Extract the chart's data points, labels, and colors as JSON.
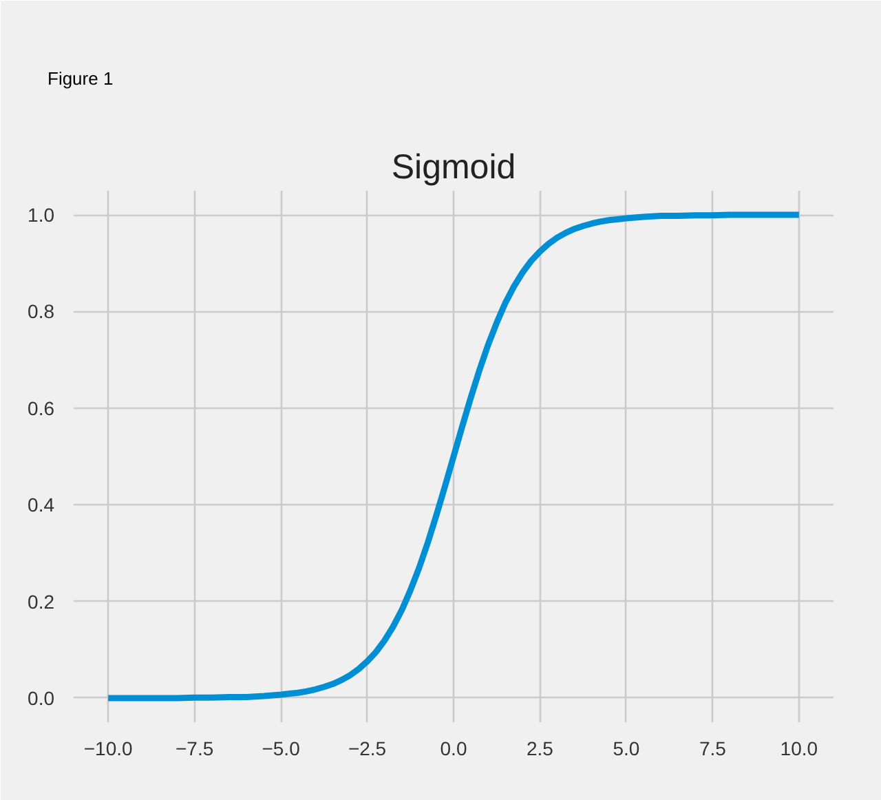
{
  "chart_data": {
    "type": "line",
    "title": "Sigmoid",
    "annotations": [
      "Figure 1"
    ],
    "x": [
      -10,
      -9.5,
      -9,
      -8.5,
      -8,
      -7.5,
      -7,
      -6.5,
      -6,
      -5.5,
      -5,
      -4.75,
      -4.5,
      -4.25,
      -4,
      -3.75,
      -3.5,
      -3.25,
      -3,
      -2.75,
      -2.5,
      -2.25,
      -2,
      -1.75,
      -1.5,
      -1.25,
      -1,
      -0.75,
      -0.5,
      -0.25,
      0,
      0.25,
      0.5,
      0.75,
      1,
      1.25,
      1.5,
      1.75,
      2,
      2.25,
      2.5,
      2.75,
      3,
      3.25,
      3.5,
      3.75,
      4,
      4.25,
      4.5,
      4.75,
      5,
      5.5,
      6,
      6.5,
      7,
      7.5,
      8,
      8.5,
      9,
      9.5,
      10
    ],
    "series": [
      {
        "color": "#008fd5",
        "values": [
          0.0,
          0.0,
          0.0,
          0.0,
          0.0,
          0.001,
          0.001,
          0.002,
          0.002,
          0.004,
          0.007,
          0.009,
          0.011,
          0.014,
          0.018,
          0.023,
          0.029,
          0.037,
          0.047,
          0.06,
          0.076,
          0.095,
          0.119,
          0.148,
          0.182,
          0.223,
          0.269,
          0.321,
          0.378,
          0.438,
          0.5,
          0.562,
          0.622,
          0.679,
          0.731,
          0.777,
          0.818,
          0.852,
          0.881,
          0.905,
          0.924,
          0.94,
          0.953,
          0.963,
          0.971,
          0.977,
          0.982,
          0.986,
          0.989,
          0.991,
          0.993,
          0.996,
          0.998,
          0.998,
          0.999,
          0.999,
          1.0,
          1.0,
          1.0,
          1.0,
          1.0
        ]
      }
    ],
    "xlim": [
      -11,
      11
    ],
    "ylim": [
      -0.05,
      1.05
    ],
    "xticks": [
      {
        "value": -10,
        "label": "−10.0"
      },
      {
        "value": -7.5,
        "label": "−7.5"
      },
      {
        "value": -5,
        "label": "−5.0"
      },
      {
        "value": -2.5,
        "label": "−2.5"
      },
      {
        "value": 0,
        "label": "0.0"
      },
      2.5,
      {
        "value": 5,
        "label": "5.0"
      },
      7.5,
      {
        "value": 10,
        "label": "10.0"
      }
    ],
    "yticks": [
      {
        "value": 0,
        "label": "0.0"
      },
      0.2,
      0.4,
      0.6,
      0.8,
      {
        "value": 1,
        "label": "1.0"
      }
    ],
    "grid": true,
    "line_style": "solid"
  }
}
